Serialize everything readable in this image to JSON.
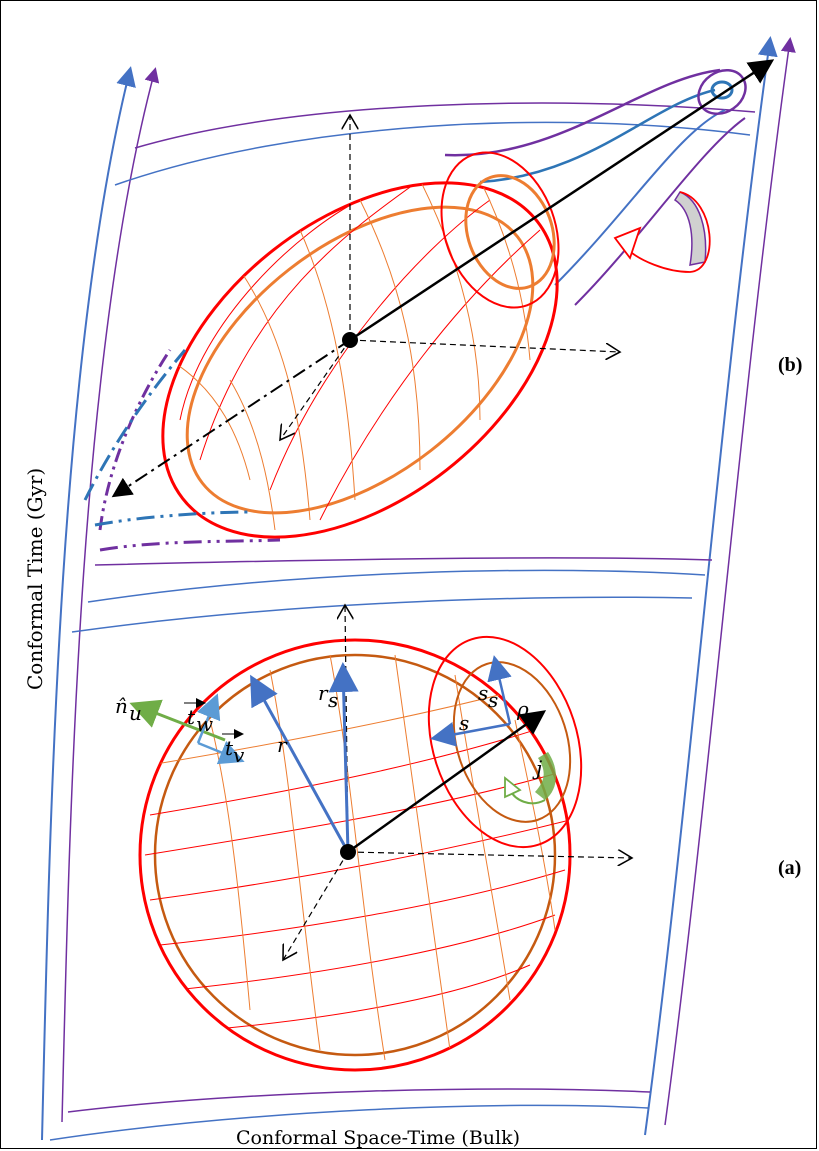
{
  "axes": {
    "y_label": "Conformal Time (Gyr)",
    "x_label": "Conformal Space-Time (Bulk)"
  },
  "panels": {
    "b": {
      "label": "(b)"
    },
    "a": {
      "label": "(a)"
    }
  },
  "symbols": {
    "n_u": "n̂",
    "n_u_sub": "u",
    "t_w": "t",
    "t_w_sub": "w",
    "t_v": "t",
    "t_v_sub": "v",
    "r": "r",
    "r_s": "r",
    "r_s_sub": "s",
    "s": "s",
    "s_s": "s",
    "s_s_sub": "s",
    "rho": "ρ",
    "j": "j"
  },
  "colors": {
    "worldline_blue": "#4472C4",
    "worldline_purple": "#7030A0",
    "sphere_red": "#FF0000",
    "inner_orange": "#ED7D31",
    "inner_brown": "#C55A11",
    "vector_blue": "#4472C4",
    "normal_green": "#70AD47",
    "tube_blue": "#2E75B6",
    "spin_green": "#70AD47",
    "fill_gray": "#D0D0D0"
  }
}
